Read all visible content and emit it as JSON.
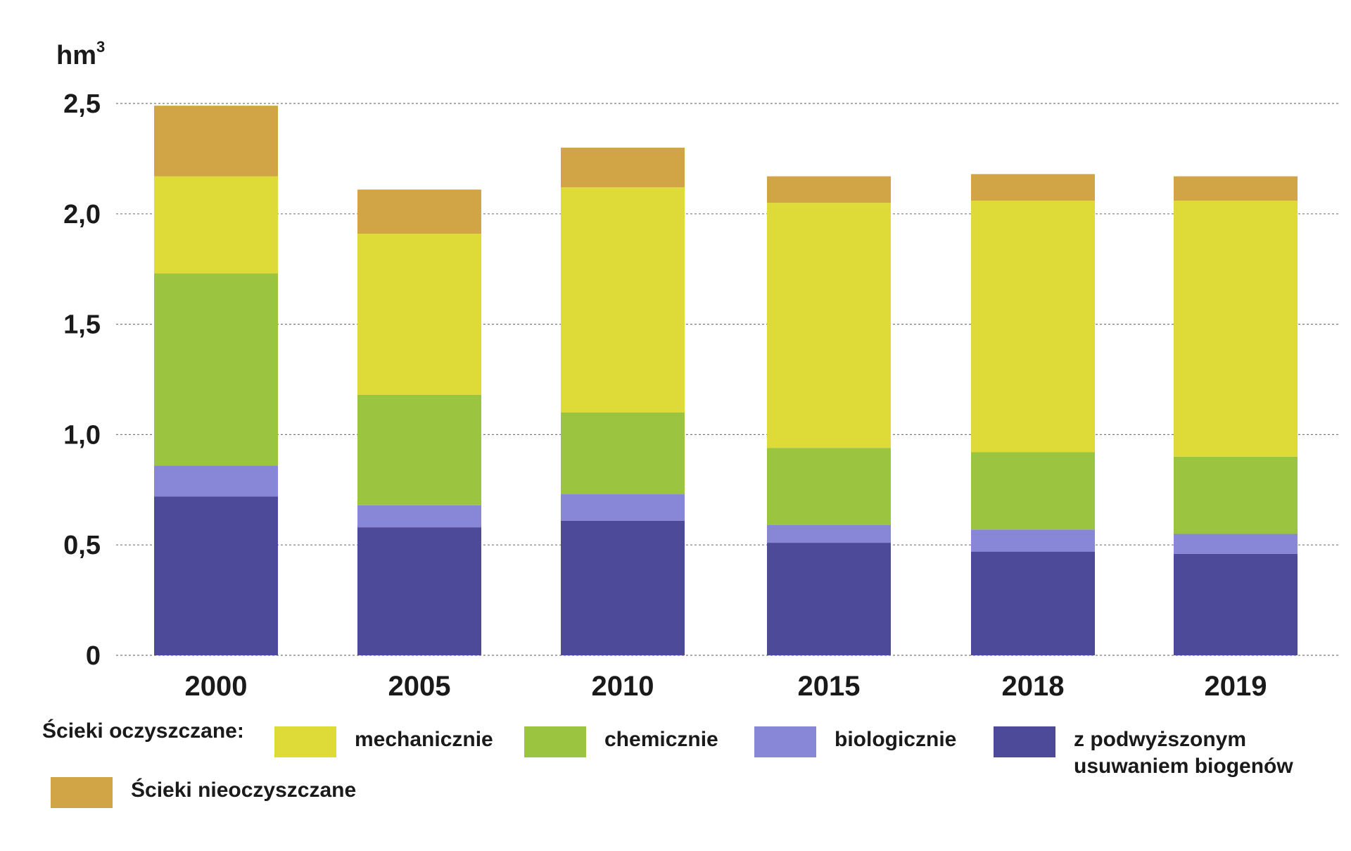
{
  "chart_data": {
    "type": "bar",
    "stacked": true,
    "unit": "hm",
    "unit_superscript": "3",
    "categories": [
      "2000",
      "2005",
      "2010",
      "2015",
      "2018",
      "2019"
    ],
    "series": [
      {
        "name": "z podwyższonym usuwaniem biogenów",
        "color": "#4e4a9a",
        "values": [
          0.72,
          0.58,
          0.61,
          0.51,
          0.47,
          0.46
        ]
      },
      {
        "name": "biologicznie",
        "color": "#8886d6",
        "values": [
          0.14,
          0.1,
          0.12,
          0.08,
          0.1,
          0.09
        ]
      },
      {
        "name": "chemicznie",
        "color": "#9bc441",
        "values": [
          0.87,
          0.5,
          0.37,
          0.35,
          0.35,
          0.35
        ]
      },
      {
        "name": "mechanicznie",
        "color": "#dedb39",
        "values": [
          0.44,
          0.73,
          1.02,
          1.11,
          1.14,
          1.16
        ]
      },
      {
        "name": "Ścieki nieoczyszczane",
        "color": "#d1a545",
        "values": [
          0.32,
          0.2,
          0.18,
          0.12,
          0.12,
          0.11
        ]
      }
    ],
    "ylim": [
      0,
      2.5
    ],
    "yticks": [
      "0",
      "0,5",
      "1,0",
      "1,5",
      "2,0",
      "2,5"
    ],
    "ytick_values": [
      0,
      0.5,
      1.0,
      1.5,
      2.0,
      2.5
    ],
    "grid": "dashed horizontal",
    "xlabel": "",
    "ylabel": "hm³"
  },
  "legend": {
    "title": "Ścieki oczyszczane:",
    "items": [
      {
        "label": "mechanicznie",
        "color": "#dedb39"
      },
      {
        "label": "chemicznie",
        "color": "#9bc441"
      },
      {
        "label": "biologicznie",
        "color": "#8886d6"
      },
      {
        "label": "z podwyższonym usuwaniem biogenów",
        "color": "#4e4a9a"
      },
      {
        "label": "Ścieki nieoczyszczane",
        "color": "#d1a545"
      }
    ]
  }
}
